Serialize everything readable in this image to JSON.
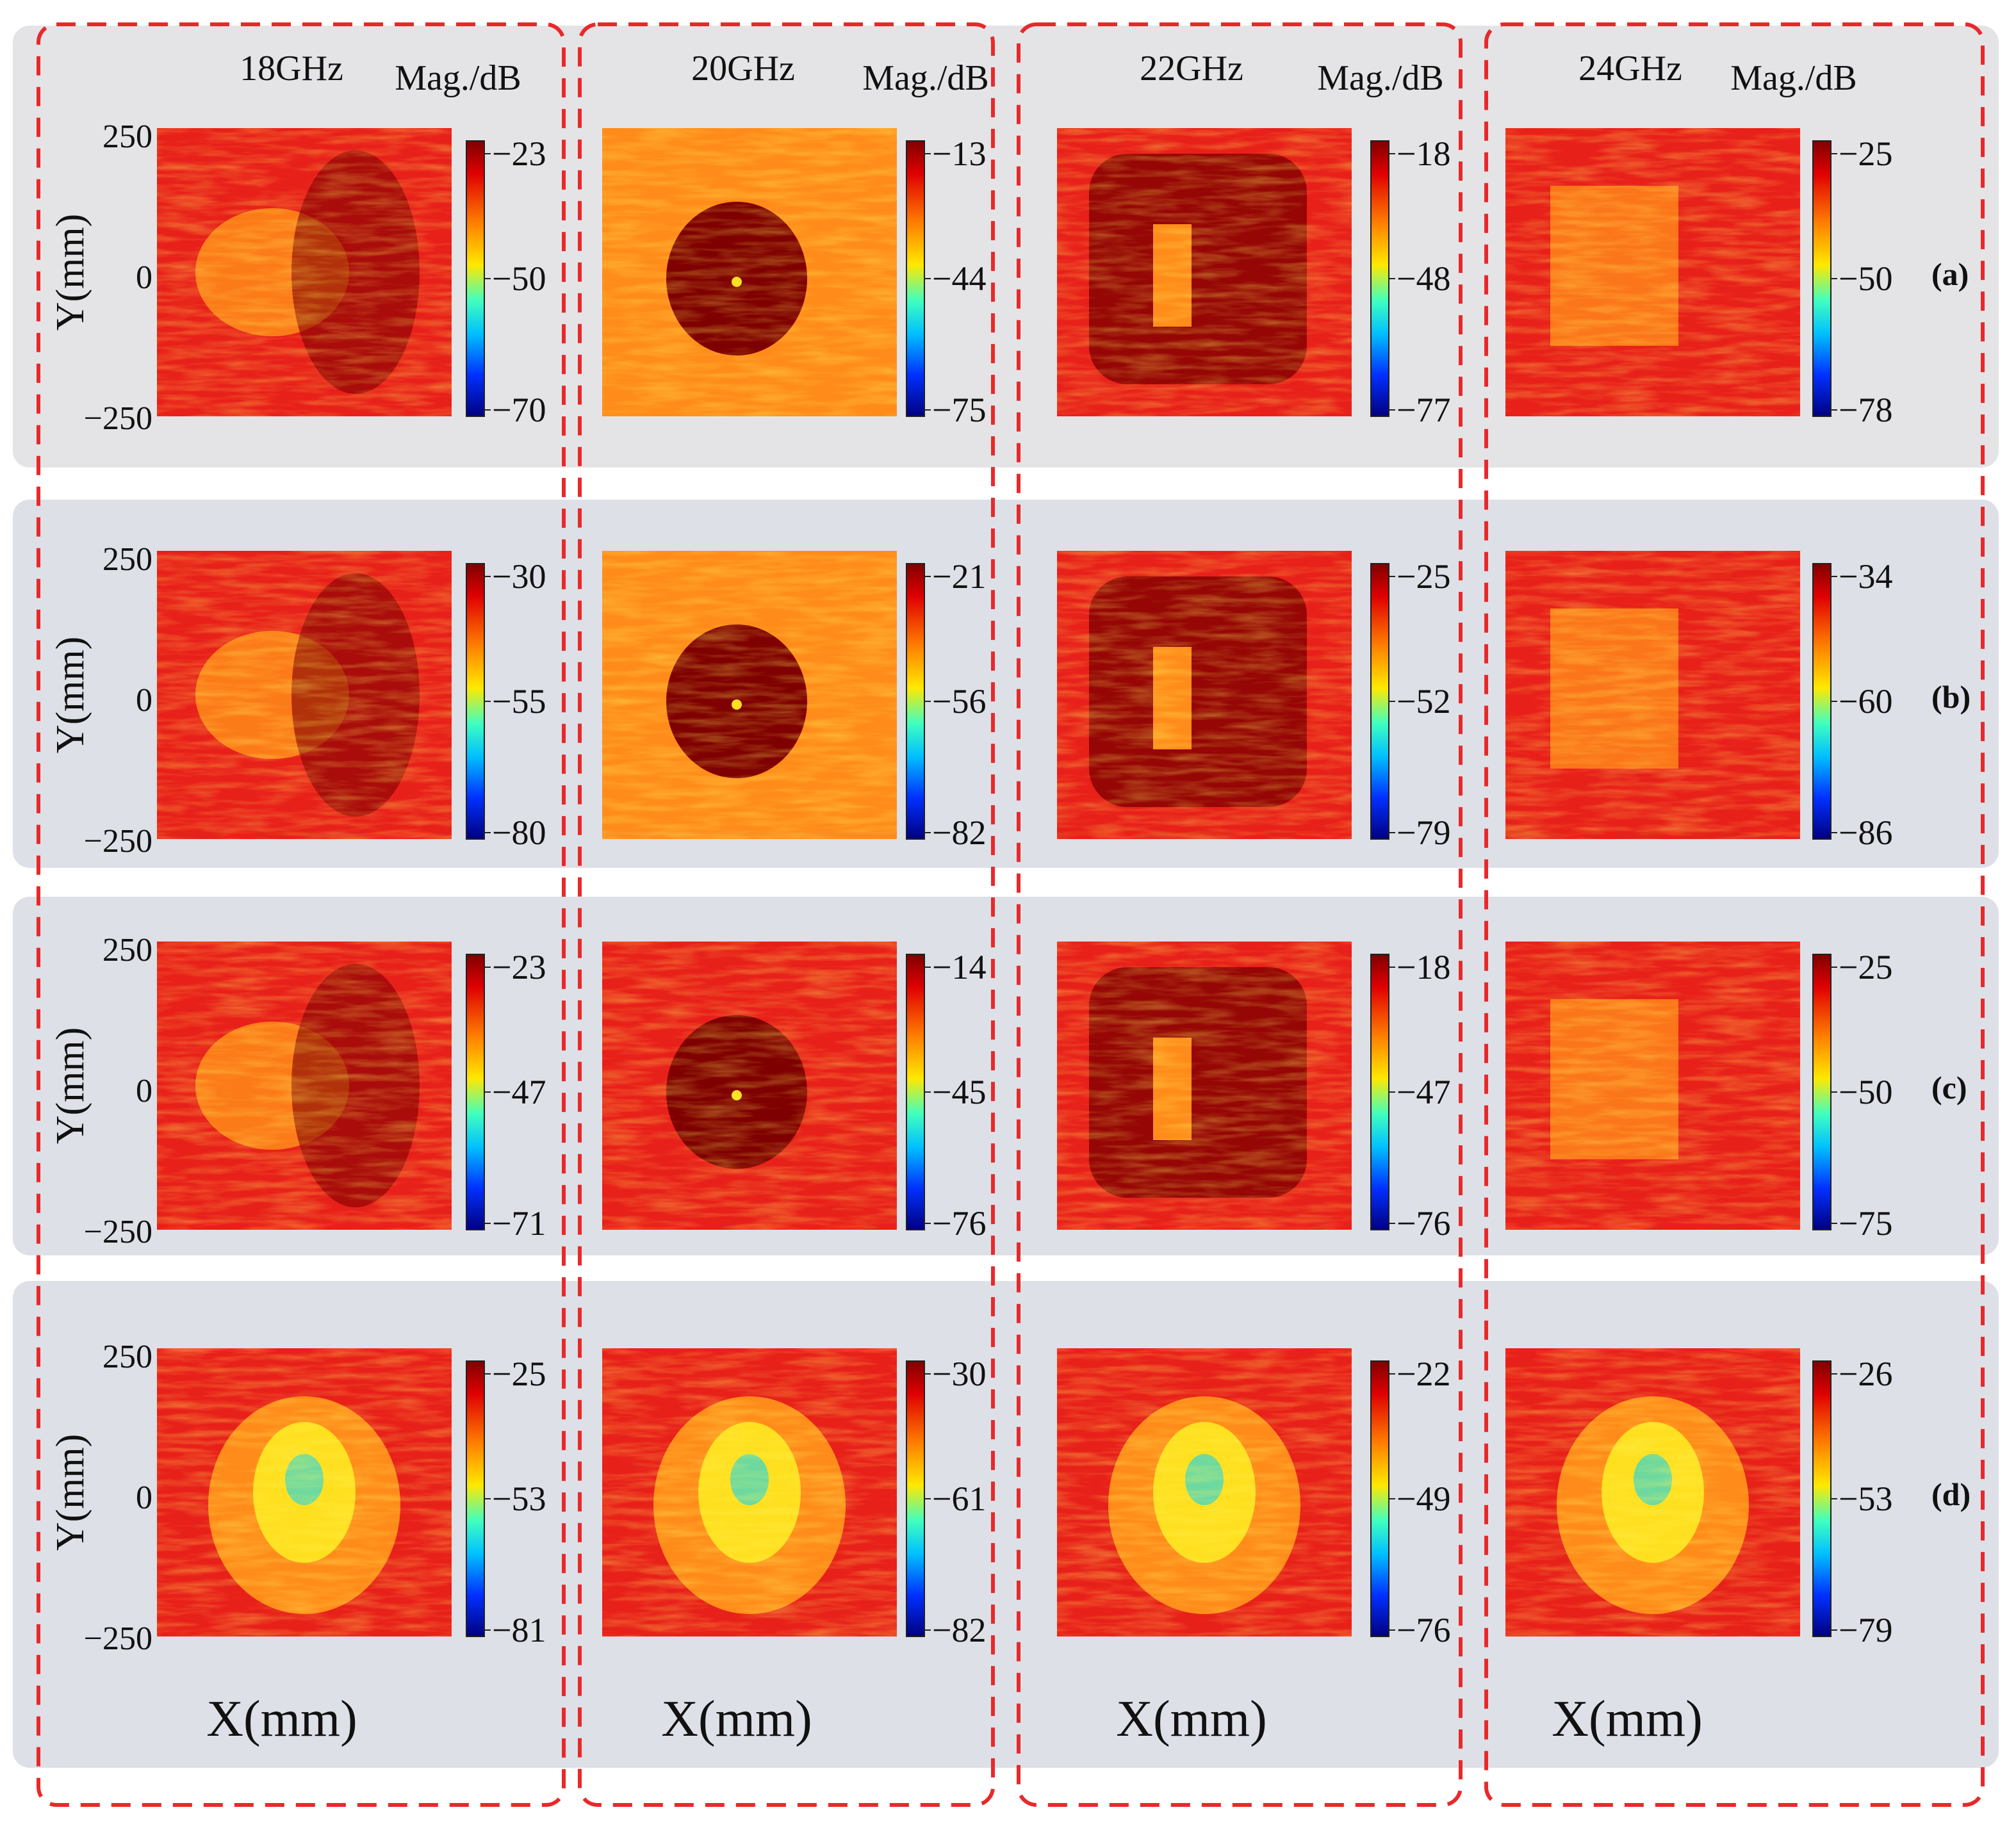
{
  "chart_data": {
    "type": "heatmap",
    "colormap": "jet",
    "xlabel": "X(mm)",
    "ylabel": "Y(mm)",
    "colorbar_label": "Mag./dB",
    "y_ticks": [
      "250",
      "0",
      "−250"
    ],
    "y_range_mm": [
      -250,
      250
    ],
    "columns": [
      "18GHz",
      "20GHz",
      "22GHz",
      "24GHz"
    ],
    "rows": [
      "(a)",
      "(b)",
      "(c)",
      "(d)"
    ],
    "colorbar_ticks": [
      [
        [
          "−23",
          "−50",
          "−70"
        ],
        [
          "−13",
          "−44",
          "−75"
        ],
        [
          "−18",
          "−48",
          "−77"
        ],
        [
          "−25",
          "−50",
          "−78"
        ]
      ],
      [
        [
          "−30",
          "−55",
          "−80"
        ],
        [
          "−21",
          "−56",
          "−82"
        ],
        [
          "−25",
          "−52",
          "−79"
        ],
        [
          "−34",
          "−60",
          "−86"
        ]
      ],
      [
        [
          "−23",
          "−47",
          "−71"
        ],
        [
          "−14",
          "−45",
          "−76"
        ],
        [
          "−18",
          "−47",
          "−76"
        ],
        [
          "−25",
          "−50",
          "−75"
        ]
      ],
      [
        [
          "−25",
          "−53",
          "−81"
        ],
        [
          "−30",
          "−61",
          "−82"
        ],
        [
          "−22",
          "−49",
          "−76"
        ],
        [
          "−26",
          "−53",
          "−79"
        ]
      ]
    ],
    "colors": {
      "frame_dash": "#e8292b",
      "row_band": "#dde0e7",
      "row_band_top": "#e4e4e6",
      "jet_dark_red": "#7f0000",
      "jet_red": "#e8201a",
      "jet_orange": "#ff8c1a",
      "jet_yellow": "#ffe020",
      "jet_cyan": "#2fd6d6",
      "jet_blue": "#0030ff",
      "jet_dark_blue": "#00007f"
    }
  }
}
